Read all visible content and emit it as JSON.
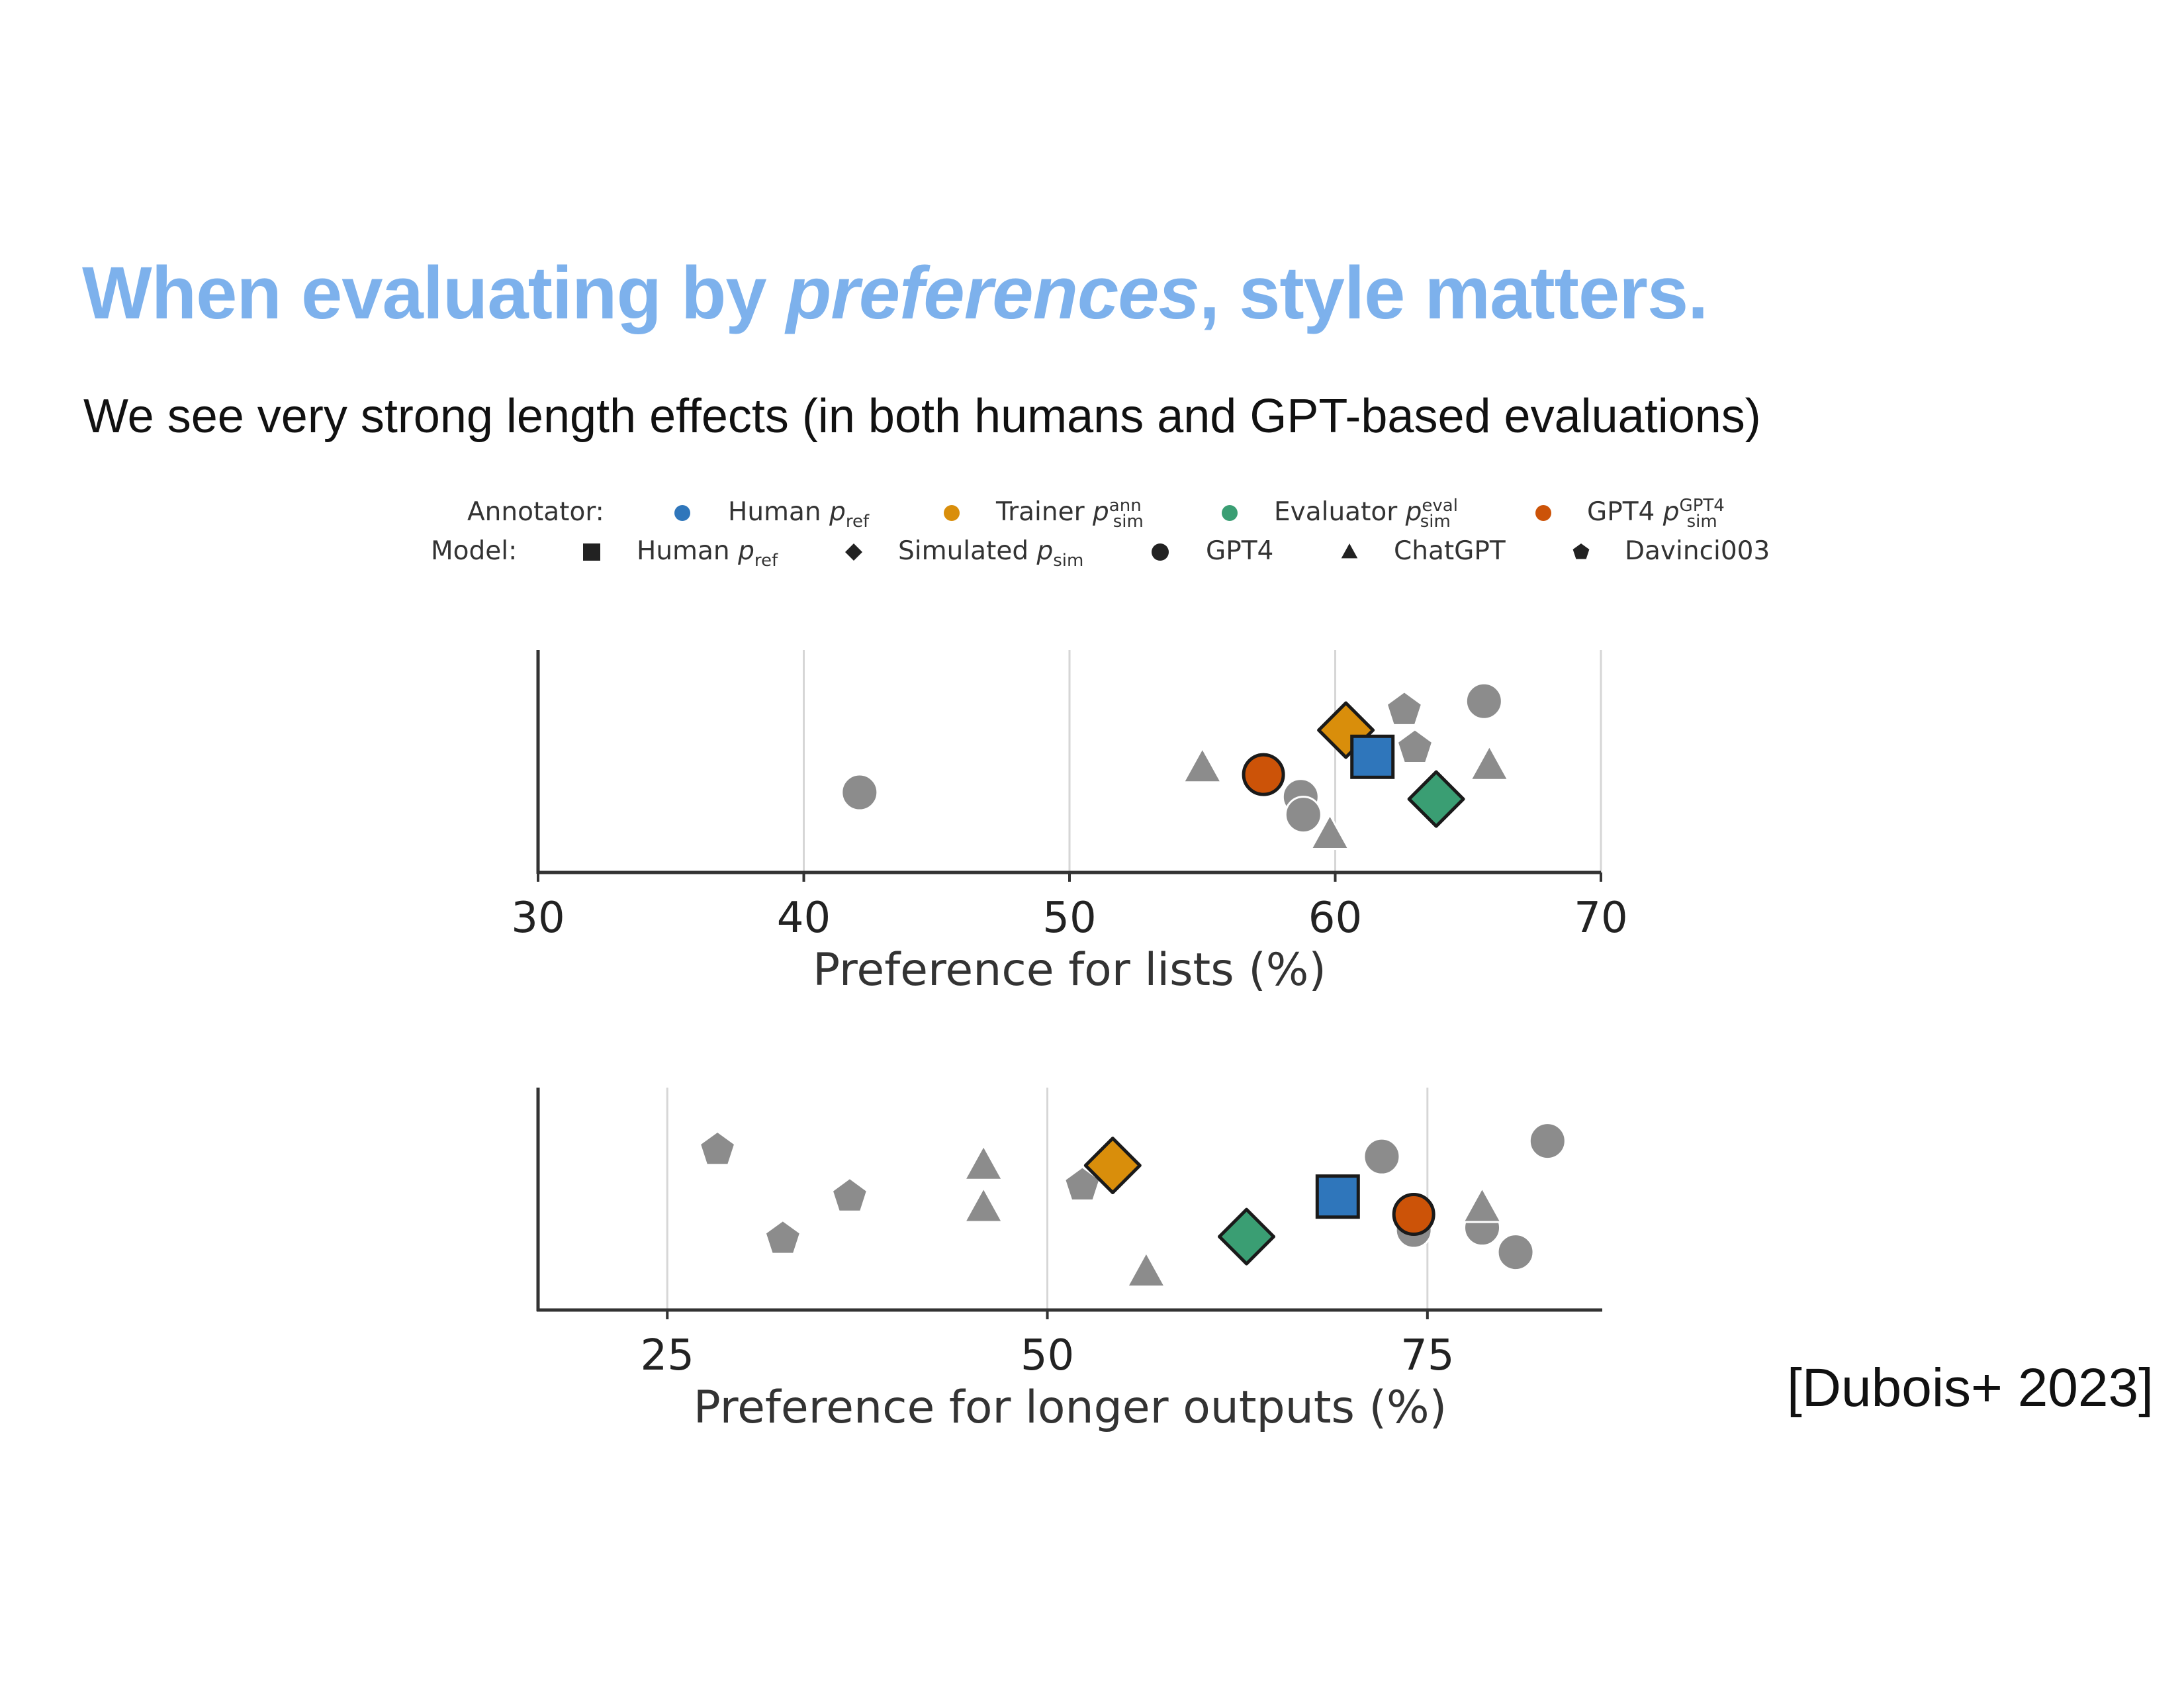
{
  "slide": {
    "title_prefix": "When evaluating by ",
    "title_em": "preferences",
    "title_suffix": ", style matters.",
    "subtitle": "We see very strong length effects (in both humans and GPT-based evaluations)",
    "citation": "[Dubois+ 2023]",
    "title_color": "#7db1ec"
  },
  "legend": {
    "annotator_label": "Annotator:",
    "model_label": "Model:",
    "annotators": [
      {
        "key": "human",
        "text": "Human ",
        "sym": "p",
        "sub": "ref",
        "sup": "",
        "color": "#2f76bb"
      },
      {
        "key": "trainer",
        "text": "Trainer ",
        "sym": "p",
        "sub": "sim",
        "sup": "ann",
        "color": "#d98e0b"
      },
      {
        "key": "evaluator",
        "text": "Evaluator ",
        "sym": "p",
        "sub": "sim",
        "sup": "eval",
        "color": "#3a9e73"
      },
      {
        "key": "gpt4",
        "text": "GPT4 ",
        "sym": "p",
        "sub": "sim",
        "sup": "GPT4",
        "color": "#cc5308"
      }
    ],
    "models": [
      {
        "key": "human",
        "text": "Human ",
        "sym": "p",
        "sub": "ref",
        "marker": "square"
      },
      {
        "key": "simulated",
        "text": "Simulated ",
        "sym": "p",
        "sub": "sim",
        "marker": "diamond"
      },
      {
        "key": "gpt4",
        "text": "GPT4",
        "sym": "",
        "sub": "",
        "marker": "circle"
      },
      {
        "key": "chatgpt",
        "text": "ChatGPT",
        "sym": "",
        "sub": "",
        "marker": "triangle"
      },
      {
        "key": "davinci",
        "text": "Davinci003",
        "sym": "",
        "sub": "",
        "marker": "pentagon"
      }
    ]
  },
  "chart_data": [
    {
      "type": "scatter",
      "xlabel": "Preference for lists (%)",
      "xlim": [
        30,
        70
      ],
      "xticks": [
        30,
        40,
        50,
        60,
        70
      ],
      "grid": "vertical",
      "points": [
        {
          "x": 42.1,
          "y": 0.36,
          "marker": "circle",
          "color": "gray"
        },
        {
          "x": 55.0,
          "y": 0.47,
          "marker": "triangle",
          "color": "gray"
        },
        {
          "x": 58.7,
          "y": 0.34,
          "marker": "circle",
          "color": "gray"
        },
        {
          "x": 58.8,
          "y": 0.26,
          "marker": "circle",
          "color": "gray"
        },
        {
          "x": 59.8,
          "y": 0.17,
          "marker": "triangle",
          "color": "gray"
        },
        {
          "x": 62.6,
          "y": 0.73,
          "marker": "pentagon",
          "color": "gray"
        },
        {
          "x": 63.0,
          "y": 0.56,
          "marker": "pentagon",
          "color": "gray"
        },
        {
          "x": 65.6,
          "y": 0.77,
          "marker": "circle",
          "color": "gray"
        },
        {
          "x": 65.8,
          "y": 0.48,
          "marker": "triangle",
          "color": "gray"
        },
        {
          "x": 60.4,
          "y": 0.64,
          "marker": "diamond",
          "color": "trainer"
        },
        {
          "x": 61.4,
          "y": 0.52,
          "marker": "square",
          "color": "human"
        },
        {
          "x": 57.3,
          "y": 0.44,
          "marker": "circle",
          "color": "gpt4"
        },
        {
          "x": 63.8,
          "y": 0.33,
          "marker": "diamond",
          "color": "evaluator"
        }
      ]
    },
    {
      "type": "scatter",
      "xlabel": "Preference for longer outputs (%)",
      "xlim": [
        16.5,
        86.5
      ],
      "xticks": [
        25,
        50,
        75
      ],
      "grid": "vertical",
      "points": [
        {
          "x": 28.3,
          "y": 0.72,
          "marker": "pentagon",
          "color": "gray"
        },
        {
          "x": 32.6,
          "y": 0.32,
          "marker": "pentagon",
          "color": "gray"
        },
        {
          "x": 37.0,
          "y": 0.51,
          "marker": "pentagon",
          "color": "gray"
        },
        {
          "x": 45.8,
          "y": 0.65,
          "marker": "triangle",
          "color": "gray"
        },
        {
          "x": 45.8,
          "y": 0.46,
          "marker": "triangle",
          "color": "gray"
        },
        {
          "x": 52.3,
          "y": 0.56,
          "marker": "pentagon",
          "color": "gray"
        },
        {
          "x": 56.5,
          "y": 0.17,
          "marker": "triangle",
          "color": "gray"
        },
        {
          "x": 72.0,
          "y": 0.69,
          "marker": "circle",
          "color": "gray"
        },
        {
          "x": 74.1,
          "y": 0.36,
          "marker": "circle",
          "color": "gray"
        },
        {
          "x": 78.6,
          "y": 0.37,
          "marker": "circle",
          "color": "gray"
        },
        {
          "x": 78.6,
          "y": 0.46,
          "marker": "triangle",
          "color": "gray"
        },
        {
          "x": 80.8,
          "y": 0.26,
          "marker": "circle",
          "color": "gray"
        },
        {
          "x": 82.9,
          "y": 0.76,
          "marker": "circle",
          "color": "gray"
        },
        {
          "x": 54.3,
          "y": 0.65,
          "marker": "diamond",
          "color": "trainer"
        },
        {
          "x": 69.1,
          "y": 0.51,
          "marker": "square",
          "color": "human"
        },
        {
          "x": 74.1,
          "y": 0.43,
          "marker": "circle",
          "color": "gpt4"
        },
        {
          "x": 63.1,
          "y": 0.33,
          "marker": "diamond",
          "color": "evaluator"
        }
      ]
    }
  ],
  "colors": {
    "gray": "#8c8c8c",
    "human": "#2f76bb",
    "trainer": "#d98e0b",
    "evaluator": "#3a9e73",
    "gpt4": "#cc5308"
  }
}
